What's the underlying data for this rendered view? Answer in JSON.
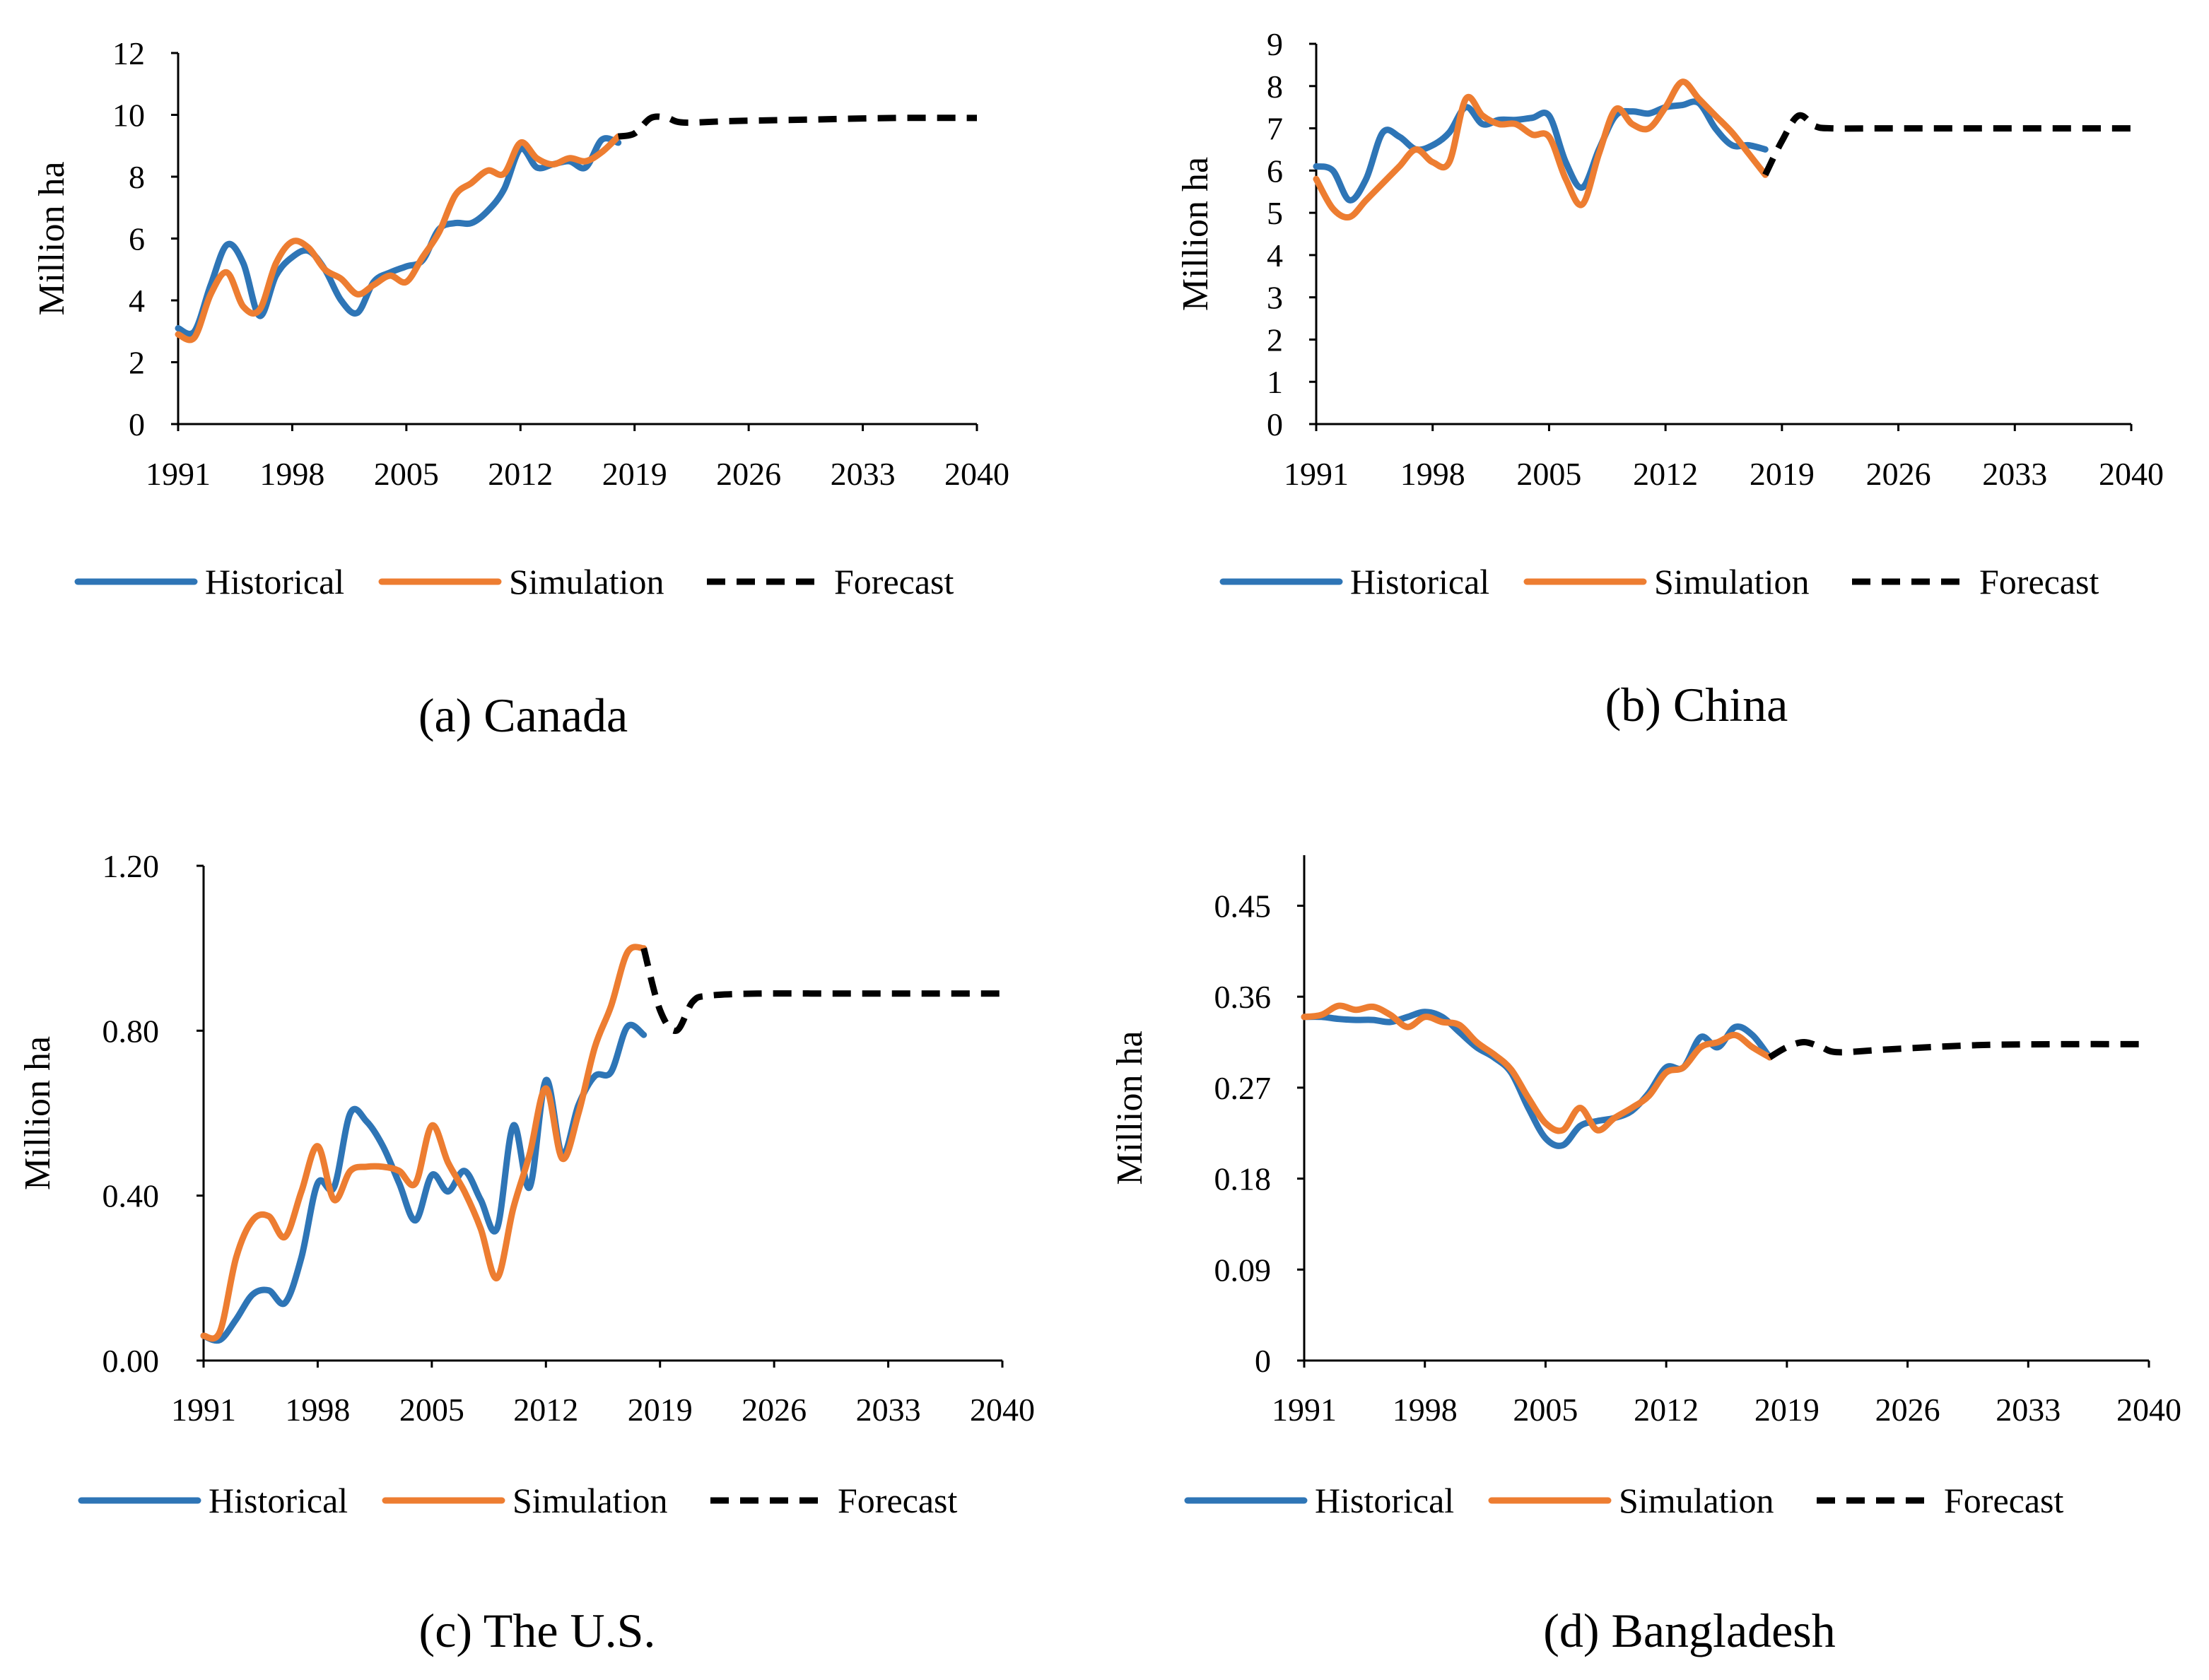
{
  "figure": {
    "colors": {
      "historical": "#2E75B6",
      "simulation": "#ED7D31",
      "forecast": "#000000",
      "axis": "#000000"
    }
  },
  "chart_data": [
    {
      "id": "a",
      "type": "line",
      "caption": "(a) Canada",
      "ylabel": "Million ha",
      "xlabel": "",
      "xlim": [
        1991,
        2040
      ],
      "xticks": [
        "1991",
        "1998",
        "2005",
        "2012",
        "2019",
        "2026",
        "2033",
        "2040"
      ],
      "ylim": [
        0,
        12
      ],
      "yticks": [
        "0",
        "2",
        "4",
        "6",
        "8",
        "10",
        "12"
      ],
      "legend": [
        "Historical",
        "Simulation",
        "Forecast"
      ],
      "legend_position": "bottom",
      "grid": false,
      "series": [
        {
          "name": "Historical",
          "x": [
            1991,
            1992,
            1993,
            1994,
            1995,
            1996,
            1997,
            1998,
            1999,
            2000,
            2001,
            2002,
            2003,
            2004,
            2005,
            2006,
            2007,
            2008,
            2009,
            2010,
            2011,
            2012,
            2013,
            2014,
            2015,
            2016,
            2017,
            2018
          ],
          "values": [
            3.1,
            3.0,
            4.5,
            5.8,
            5.2,
            3.5,
            4.8,
            5.4,
            5.6,
            5.0,
            4.0,
            3.6,
            4.6,
            4.9,
            5.1,
            5.3,
            6.3,
            6.5,
            6.5,
            6.9,
            7.6,
            8.9,
            8.3,
            8.4,
            8.5,
            8.3,
            9.2,
            9.1
          ]
        },
        {
          "name": "Simulation",
          "x": [
            1991,
            1992,
            1993,
            1994,
            1995,
            1996,
            1997,
            1998,
            1999,
            2000,
            2001,
            2002,
            2003,
            2004,
            2005,
            2006,
            2007,
            2008,
            2009,
            2010,
            2011,
            2012,
            2013,
            2014,
            2015,
            2016,
            2017,
            2018
          ],
          "values": [
            2.9,
            2.8,
            4.2,
            4.9,
            3.8,
            3.7,
            5.2,
            5.9,
            5.7,
            5.0,
            4.7,
            4.2,
            4.5,
            4.8,
            4.6,
            5.4,
            6.2,
            7.4,
            7.8,
            8.2,
            8.1,
            9.1,
            8.6,
            8.4,
            8.6,
            8.5,
            8.8,
            9.3
          ]
        },
        {
          "name": "Forecast",
          "x": [
            2018,
            2019,
            2020,
            2021,
            2022,
            2025,
            2030,
            2035,
            2040
          ],
          "values": [
            9.3,
            9.4,
            9.9,
            9.9,
            9.75,
            9.8,
            9.85,
            9.9,
            9.9
          ]
        }
      ]
    },
    {
      "id": "b",
      "type": "line",
      "caption": "(b) China",
      "ylabel": "Million ha",
      "xlabel": "",
      "xlim": [
        1991,
        2040
      ],
      "xticks": [
        "1991",
        "1998",
        "2005",
        "2012",
        "2019",
        "2026",
        "2033",
        "2040"
      ],
      "ylim": [
        0,
        9
      ],
      "yticks": [
        "0",
        "1",
        "2",
        "3",
        "4",
        "5",
        "6",
        "7",
        "8",
        "9"
      ],
      "legend": [
        "Historical",
        "Simulation",
        "Forecast"
      ],
      "legend_position": "bottom",
      "grid": false,
      "series": [
        {
          "name": "Historical",
          "x": [
            1991,
            1992,
            1993,
            1994,
            1995,
            1996,
            1997,
            1998,
            1999,
            2000,
            2001,
            2002,
            2003,
            2004,
            2005,
            2006,
            2007,
            2008,
            2009,
            2010,
            2011,
            2012,
            2013,
            2014,
            2015,
            2016,
            2017,
            2018
          ],
          "values": [
            6.1,
            6.0,
            5.3,
            5.8,
            6.9,
            6.8,
            6.5,
            6.6,
            6.9,
            7.5,
            7.1,
            7.2,
            7.2,
            7.25,
            7.3,
            6.2,
            5.6,
            6.5,
            7.3,
            7.4,
            7.35,
            7.5,
            7.55,
            7.6,
            7.0,
            6.6,
            6.6,
            6.5
          ]
        },
        {
          "name": "Simulation",
          "x": [
            1991,
            1992,
            1993,
            1994,
            1995,
            1996,
            1997,
            1998,
            1999,
            2000,
            2001,
            2002,
            2003,
            2004,
            2005,
            2006,
            2007,
            2008,
            2009,
            2010,
            2011,
            2012,
            2013,
            2014,
            2015,
            2016,
            2017,
            2018
          ],
          "values": [
            5.8,
            5.1,
            4.9,
            5.3,
            5.7,
            6.1,
            6.5,
            6.2,
            6.2,
            7.7,
            7.3,
            7.1,
            7.1,
            6.85,
            6.8,
            5.8,
            5.2,
            6.4,
            7.45,
            7.1,
            7.0,
            7.5,
            8.1,
            7.7,
            7.3,
            6.9,
            6.4,
            5.9
          ]
        },
        {
          "name": "Forecast",
          "x": [
            2018,
            2019,
            2020,
            2021,
            2022,
            2025,
            2030,
            2035,
            2040
          ],
          "values": [
            5.9,
            6.7,
            7.3,
            7.05,
            7.0,
            7.0,
            7.0,
            7.0,
            7.0
          ]
        }
      ]
    },
    {
      "id": "c",
      "type": "line",
      "caption": "(c) The U.S.",
      "ylabel": "Million ha",
      "xlabel": "",
      "xlim": [
        1991,
        2040
      ],
      "xticks": [
        "1991",
        "1998",
        "2005",
        "2012",
        "2019",
        "2026",
        "2033",
        "2040"
      ],
      "ylim": [
        0,
        1.2
      ],
      "yticks": [
        "0.00",
        "0.40",
        "0.80",
        "1.20"
      ],
      "legend": [
        "Historical",
        "Simulation",
        "Forecast"
      ],
      "legend_position": "bottom",
      "grid": false,
      "series": [
        {
          "name": "Historical",
          "x": [
            1991,
            1992,
            1993,
            1994,
            1995,
            1996,
            1997,
            1998,
            1999,
            2000,
            2001,
            2002,
            2003,
            2004,
            2005,
            2006,
            2007,
            2008,
            2009,
            2010,
            2011,
            2012,
            2013,
            2014,
            2015,
            2016,
            2017,
            2018
          ],
          "values": [
            0.06,
            0.05,
            0.1,
            0.16,
            0.17,
            0.14,
            0.25,
            0.43,
            0.42,
            0.6,
            0.58,
            0.52,
            0.43,
            0.34,
            0.45,
            0.41,
            0.46,
            0.39,
            0.32,
            0.57,
            0.42,
            0.68,
            0.5,
            0.62,
            0.69,
            0.7,
            0.81,
            0.79
          ]
        },
        {
          "name": "Simulation",
          "x": [
            1991,
            1992,
            1993,
            1994,
            1995,
            1996,
            1997,
            1998,
            1999,
            2000,
            2001,
            2002,
            2003,
            2004,
            2005,
            2006,
            2007,
            2008,
            2009,
            2010,
            2011,
            2012,
            2013,
            2014,
            2015,
            2016,
            2017,
            2018
          ],
          "values": [
            0.06,
            0.07,
            0.25,
            0.34,
            0.35,
            0.3,
            0.41,
            0.52,
            0.39,
            0.46,
            0.47,
            0.47,
            0.46,
            0.43,
            0.57,
            0.48,
            0.41,
            0.32,
            0.2,
            0.37,
            0.5,
            0.66,
            0.49,
            0.6,
            0.76,
            0.86,
            0.99,
            1.0
          ]
        },
        {
          "name": "Forecast",
          "x": [
            2018,
            2019,
            2020,
            2021,
            2022,
            2025,
            2030,
            2035,
            2040
          ],
          "values": [
            1.0,
            0.85,
            0.8,
            0.87,
            0.885,
            0.89,
            0.89,
            0.89,
            0.89
          ]
        }
      ]
    },
    {
      "id": "d",
      "type": "line",
      "caption": "(d) Bangladesh",
      "ylabel": "Million ha",
      "xlabel": "",
      "xlim": [
        1991,
        2040
      ],
      "xticks": [
        "1991",
        "1998",
        "2005",
        "2012",
        "2019",
        "2026",
        "2033",
        "2040"
      ],
      "ylim": [
        0,
        0.5
      ],
      "yticks": [
        "0",
        "0.09",
        "0.18",
        "0.27",
        "0.36",
        "0.45"
      ],
      "legend": [
        "Historical",
        "Simulation",
        "Forecast"
      ],
      "legend_position": "bottom",
      "grid": false,
      "series": [
        {
          "name": "Historical",
          "x": [
            1991,
            1992,
            1993,
            1994,
            1995,
            1996,
            1997,
            1998,
            1999,
            2000,
            2001,
            2002,
            2003,
            2004,
            2005,
            2006,
            2007,
            2008,
            2009,
            2010,
            2011,
            2012,
            2013,
            2014,
            2015,
            2016,
            2017,
            2018
          ],
          "values": [
            0.34,
            0.34,
            0.338,
            0.337,
            0.337,
            0.335,
            0.34,
            0.345,
            0.34,
            0.325,
            0.31,
            0.3,
            0.285,
            0.25,
            0.22,
            0.213,
            0.232,
            0.237,
            0.24,
            0.247,
            0.265,
            0.29,
            0.29,
            0.32,
            0.31,
            0.33,
            0.322,
            0.3
          ]
        },
        {
          "name": "Simulation",
          "x": [
            1991,
            1992,
            1993,
            1994,
            1995,
            1996,
            1997,
            1998,
            1999,
            2000,
            2001,
            2002,
            2003,
            2004,
            2005,
            2006,
            2007,
            2008,
            2009,
            2010,
            2011,
            2012,
            2013,
            2014,
            2015,
            2016,
            2017,
            2018
          ],
          "values": [
            0.34,
            0.342,
            0.351,
            0.347,
            0.35,
            0.342,
            0.33,
            0.34,
            0.335,
            0.332,
            0.315,
            0.303,
            0.288,
            0.26,
            0.235,
            0.228,
            0.25,
            0.228,
            0.24,
            0.25,
            0.262,
            0.285,
            0.29,
            0.31,
            0.315,
            0.322,
            0.31,
            0.3
          ]
        },
        {
          "name": "Forecast",
          "x": [
            2018,
            2019,
            2020,
            2021,
            2022,
            2025,
            2030,
            2035,
            2040
          ],
          "values": [
            0.3,
            0.31,
            0.315,
            0.31,
            0.305,
            0.308,
            0.312,
            0.313,
            0.313
          ]
        }
      ]
    }
  ]
}
